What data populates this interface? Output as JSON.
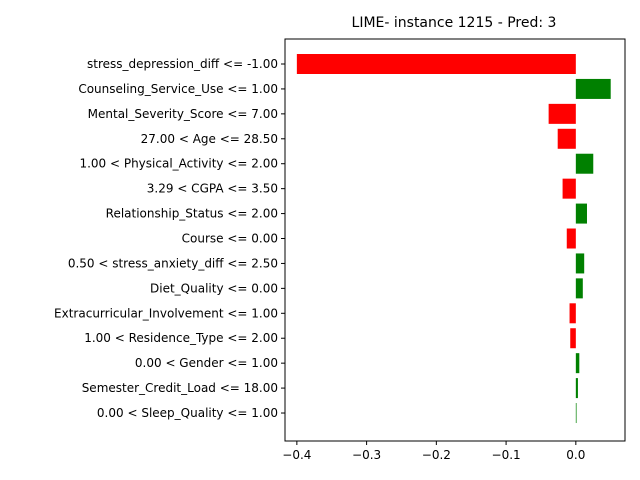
{
  "chart_data": {
    "type": "bar",
    "orientation": "horizontal",
    "title": "LIME- instance 1215 - Pred: 3",
    "xlabel": "",
    "ylabel": "",
    "xlim": [
      -0.417,
      0.0705
    ],
    "xticks": [
      -0.4,
      -0.3,
      -0.2,
      -0.1,
      0.0
    ],
    "xtick_labels": [
      "−0.4",
      "−0.3",
      "−0.2",
      "−0.1",
      "0.0"
    ],
    "grid": false,
    "legend": "none",
    "colors": {
      "positive": "#008000",
      "negative": "#ff0000"
    },
    "categories": [
      "stress_depression_diff <= -1.00",
      "Counseling_Service_Use <= 1.00",
      "Mental_Severity_Score <= 7.00",
      "27.00 < Age <= 28.50",
      "1.00 < Physical_Activity <= 2.00",
      "3.29 < CGPA <= 3.50",
      "Relationship_Status <= 2.00",
      "Course <= 0.00",
      "0.50 < stress_anxiety_diff <= 2.50",
      "Diet_Quality <= 0.00",
      "Extracurricular_Involvement <= 1.00",
      "1.00 < Residence_Type <= 2.00",
      "0.00 < Gender <= 1.00",
      "Semester_Credit_Load <= 18.00",
      "0.00 < Sleep_Quality <= 1.00"
    ],
    "values": [
      -0.4,
      0.05,
      -0.039,
      -0.026,
      0.025,
      -0.019,
      0.016,
      -0.013,
      0.012,
      0.01,
      -0.009,
      -0.008,
      0.005,
      0.003,
      0.001
    ]
  }
}
